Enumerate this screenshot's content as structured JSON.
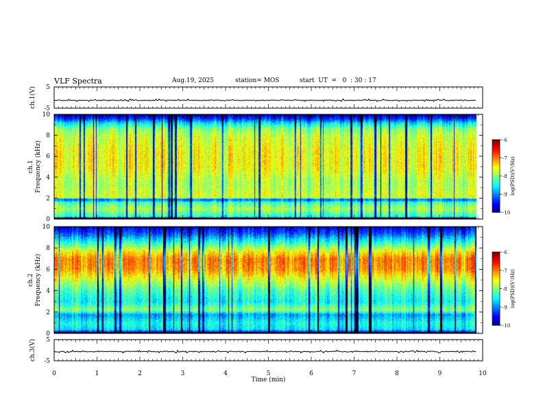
{
  "header": {
    "title": "VLF Spectra",
    "date": "Aug.19, 2025",
    "station": "station= MOS",
    "start_ut": "start  UT  =   0  : 30 : 17"
  },
  "chart_data": [
    {
      "type": "line",
      "title": "Waveform channel 1",
      "ylabel": "ch.1(V)",
      "ylim": [
        -5,
        5
      ],
      "yticks": [
        5,
        -5
      ],
      "baseline": 0,
      "xlim": [
        0,
        10
      ],
      "data_end_min": 9.85
    },
    {
      "type": "heatmap",
      "title": "Spectrogram channel 1",
      "ylabel": "ch.1\nFrequency (kHz)",
      "ylim": [
        0,
        10
      ],
      "yticks": [
        0,
        2,
        4,
        6,
        8,
        10
      ],
      "xlim": [
        0,
        10
      ],
      "data_end_min": 9.85,
      "colorbar": {
        "label": "log(PSD)(V²/Hz)",
        "min": -10,
        "max": -6,
        "ticks": [
          -6,
          -7,
          -8,
          -9,
          -10
        ]
      },
      "profile_freq_khz": [
        0,
        0.3,
        0.6,
        1.0,
        1.6,
        1.9,
        2.1,
        2.6,
        3.5,
        5.0,
        6.5,
        8.0,
        8.7,
        9.2,
        9.6,
        10.0
      ],
      "profile_log_psd": [
        -10,
        -8.3,
        -8.1,
        -7.8,
        -8.2,
        -9.2,
        -7.6,
        -7.7,
        -7.8,
        -7.5,
        -7.5,
        -7.7,
        -8.0,
        -8.6,
        -9.3,
        -9.8
      ]
    },
    {
      "type": "heatmap",
      "title": "Spectrogram channel 2",
      "ylabel": "ch.2\nFrequency (kHz)",
      "ylim": [
        0,
        10
      ],
      "yticks": [
        0,
        2,
        4,
        6,
        8,
        10
      ],
      "xlim": [
        0,
        10
      ],
      "data_end_min": 9.85,
      "colorbar": {
        "label": "log(PSD)(V²/Hz)",
        "min": -10,
        "max": -6,
        "ticks": [
          -6,
          -7,
          -8,
          -9,
          -10
        ]
      },
      "profile_freq_khz": [
        0,
        0.4,
        1.0,
        1.8,
        2.2,
        3.0,
        4.0,
        5.0,
        6.0,
        7.0,
        7.6,
        8.2,
        8.8,
        9.4,
        10.0
      ],
      "profile_log_psd": [
        -10,
        -8.6,
        -8.4,
        -8.9,
        -7.9,
        -8.5,
        -8.2,
        -7.7,
        -7.1,
        -7.0,
        -7.4,
        -8.0,
        -8.6,
        -9.2,
        -9.6
      ]
    },
    {
      "type": "line",
      "title": "Waveform channel 3",
      "ylabel": "ch.3(V)",
      "ylim": [
        -5,
        5
      ],
      "yticks": [
        5,
        -5
      ],
      "baseline": 0,
      "xlim": [
        0,
        10
      ],
      "data_end_min": 9.85
    }
  ],
  "x_axis": {
    "label": "Time  (min)",
    "ticks": [
      "0",
      "1",
      "2",
      "3",
      "4",
      "5",
      "6",
      "7",
      "8",
      "9",
      "10"
    ],
    "range": [
      0,
      10
    ]
  }
}
